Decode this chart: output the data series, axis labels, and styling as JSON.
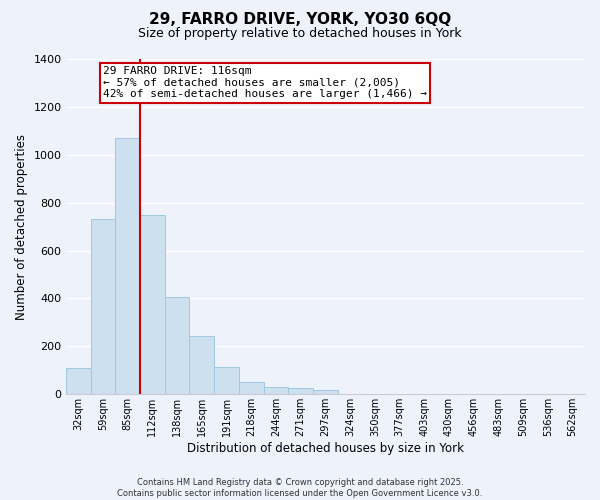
{
  "title": "29, FARRO DRIVE, YORK, YO30 6QQ",
  "subtitle": "Size of property relative to detached houses in York",
  "xlabel": "Distribution of detached houses by size in York",
  "ylabel": "Number of detached properties",
  "bar_labels": [
    "32sqm",
    "59sqm",
    "85sqm",
    "112sqm",
    "138sqm",
    "165sqm",
    "191sqm",
    "218sqm",
    "244sqm",
    "271sqm",
    "297sqm",
    "324sqm",
    "350sqm",
    "377sqm",
    "403sqm",
    "430sqm",
    "456sqm",
    "483sqm",
    "509sqm",
    "536sqm",
    "562sqm"
  ],
  "bar_values": [
    110,
    730,
    1070,
    750,
    405,
    245,
    115,
    50,
    30,
    25,
    20,
    0,
    0,
    0,
    0,
    0,
    0,
    0,
    0,
    0,
    0
  ],
  "bar_color": "#cce0f0",
  "bar_edge_color": "#9fc8e0",
  "vline_x_index": 3,
  "vline_color": "#cc0000",
  "annotation_text": "29 FARRO DRIVE: 116sqm\n← 57% of detached houses are smaller (2,005)\n42% of semi-detached houses are larger (1,466) →",
  "annotation_box_facecolor": "#ffffff",
  "annotation_box_edgecolor": "#cc0000",
  "ylim": [
    0,
    1400
  ],
  "yticks": [
    0,
    200,
    400,
    600,
    800,
    1000,
    1200,
    1400
  ],
  "footer_line1": "Contains HM Land Registry data © Crown copyright and database right 2025.",
  "footer_line2": "Contains public sector information licensed under the Open Government Licence v3.0.",
  "bg_color": "#eef2fb",
  "grid_color": "#ffffff",
  "spine_color": "#cccccc"
}
